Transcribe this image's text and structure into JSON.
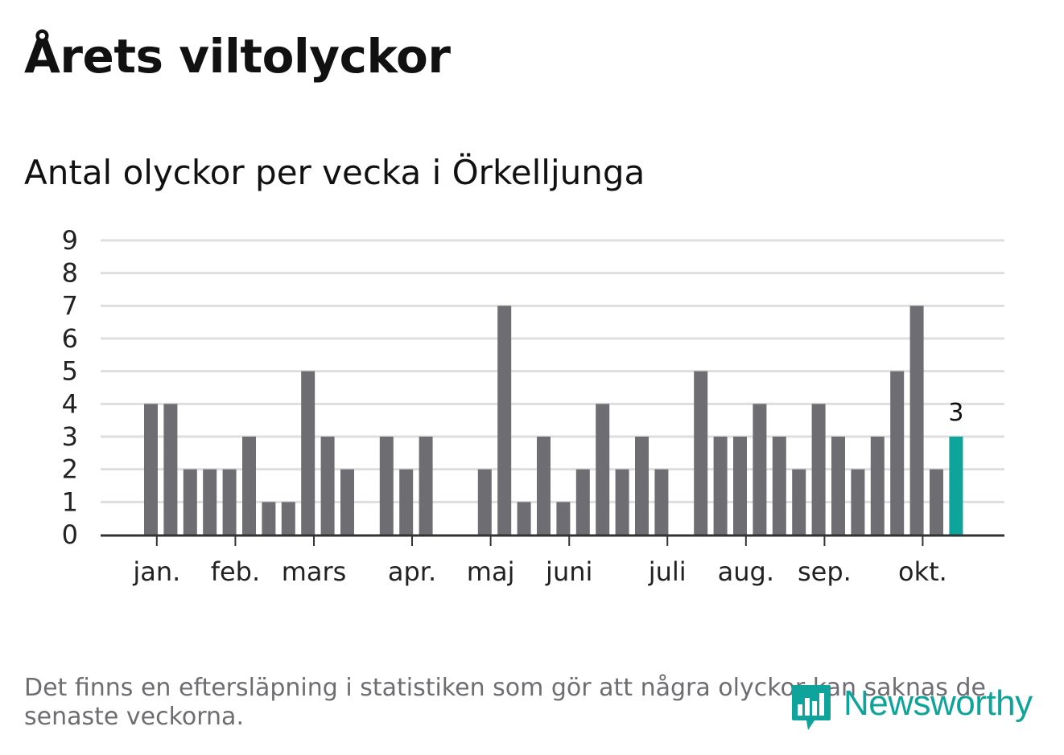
{
  "header": {
    "title": "Årets viltolyckor",
    "subtitle": "Antal olyckor per vecka i Örkelljunga"
  },
  "footnote": "Det finns en eftersläpning i statistiken som gör att några olyckor kan saknas de senaste veckorna.",
  "logo": {
    "text": "Newsworthy",
    "icon": "bar-chart-badge-icon"
  },
  "colors": {
    "bar": "#6e6d72",
    "highlight": "#0ea49b",
    "grid": "#dedede",
    "axis": "#333333"
  },
  "chart_data": {
    "type": "bar",
    "title": "Antal olyckor per vecka i Örkelljunga",
    "xlabel": "",
    "ylabel": "",
    "ylim": [
      0,
      9
    ],
    "yticks": [
      0,
      1,
      2,
      3,
      4,
      5,
      6,
      7,
      8,
      9
    ],
    "grid": true,
    "weeks": [
      1,
      2,
      3,
      4,
      5,
      6,
      7,
      8,
      9,
      10,
      11,
      12,
      13,
      14,
      15,
      16,
      17,
      18,
      19,
      20,
      21,
      22,
      23,
      24,
      25,
      26,
      27,
      28,
      29,
      30,
      31,
      32,
      33,
      34,
      35,
      36,
      37,
      38,
      39,
      40,
      41,
      42
    ],
    "values": [
      4,
      4,
      2,
      2,
      2,
      3,
      1,
      1,
      5,
      3,
      2,
      0,
      3,
      2,
      3,
      0,
      0,
      2,
      7,
      1,
      3,
      1,
      2,
      4,
      2,
      3,
      2,
      0,
      5,
      3,
      3,
      4,
      3,
      2,
      4,
      3,
      2,
      3,
      5,
      7,
      2,
      3
    ],
    "highlight_index": 41,
    "highlight_label": "3",
    "month_ticks": [
      {
        "label": "jan.",
        "week": 1.3
      },
      {
        "label": "feb.",
        "week": 5.3
      },
      {
        "label": "mars",
        "week": 9.3
      },
      {
        "label": "apr.",
        "week": 14.3
      },
      {
        "label": "maj",
        "week": 18.3
      },
      {
        "label": "juni",
        "week": 22.3
      },
      {
        "label": "juli",
        "week": 27.3
      },
      {
        "label": "aug.",
        "week": 31.3
      },
      {
        "label": "sep.",
        "week": 35.3
      },
      {
        "label": "okt.",
        "week": 40.3
      }
    ]
  }
}
